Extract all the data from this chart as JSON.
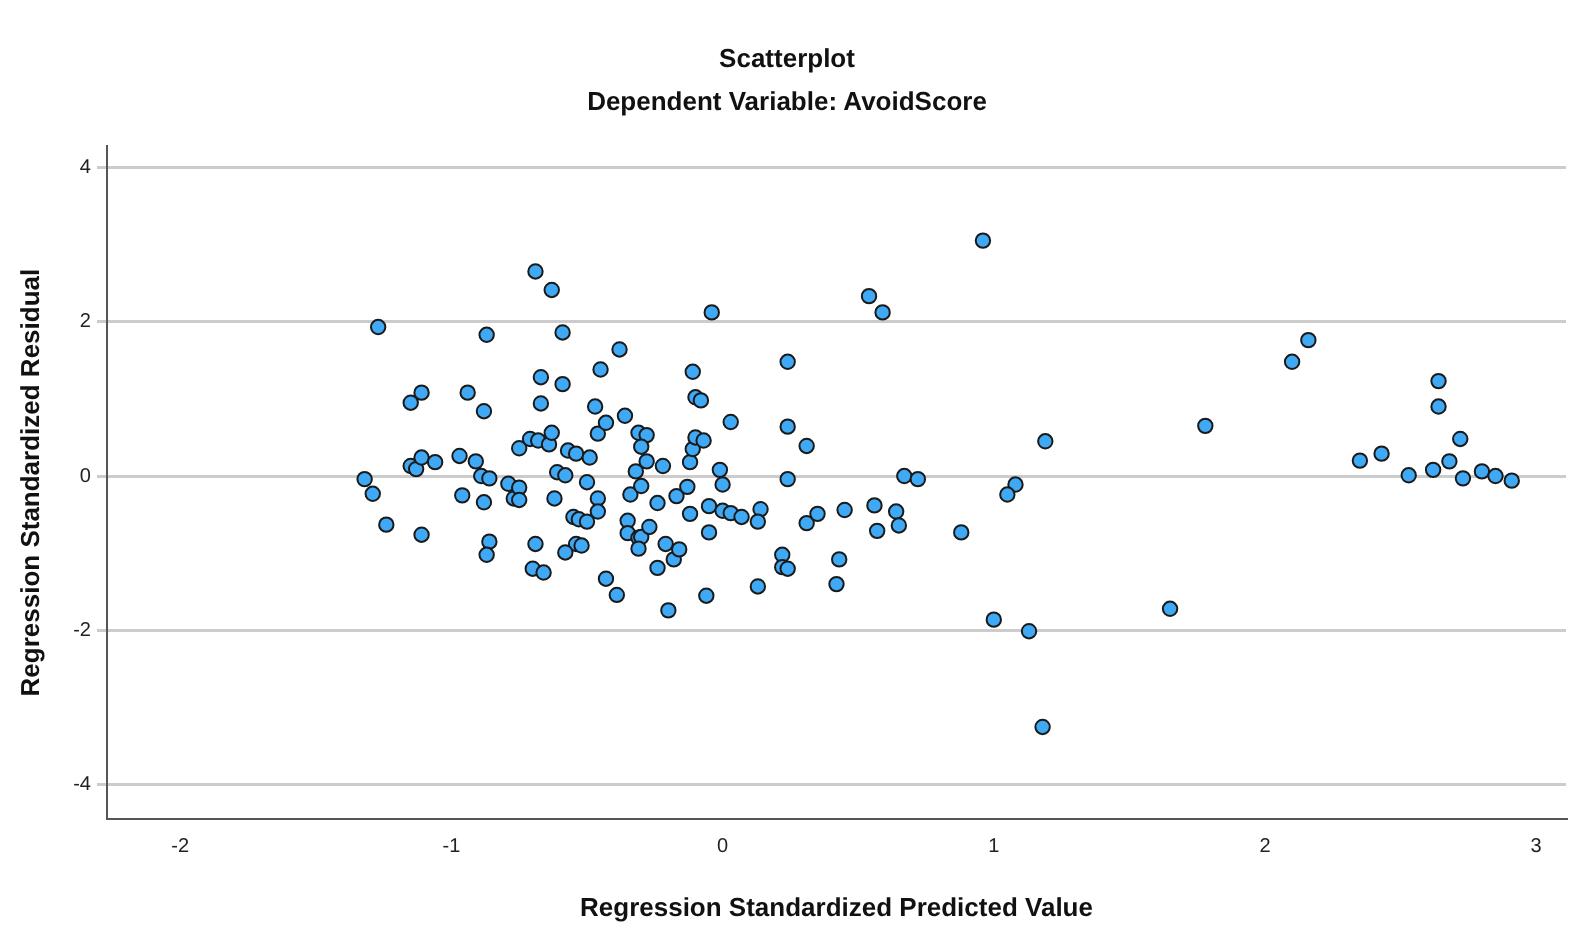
{
  "chart_data": {
    "type": "scatter",
    "title": "Scatterplot",
    "subtitle": "Dependent Variable: AvoidScore",
    "xlabel": "Regression Standardized Predicted Value",
    "ylabel": "Regression Standardized Residual",
    "xlim": [
      -2.27,
      3.11
    ],
    "ylim": [
      -4.44,
      4.27
    ],
    "xticks": [
      -2,
      -1,
      0,
      1,
      2,
      3
    ],
    "yticks": [
      -4,
      -2,
      0,
      2,
      4
    ],
    "grid": "y",
    "marker": "circle",
    "series": [
      {
        "color": "#3fa9f5",
        "x": [
          -1.32,
          -1.29,
          -1.24,
          -1.27,
          -1.15,
          -1.11,
          -1.15,
          -1.13,
          -1.11,
          -1.06,
          -1.11,
          -0.97,
          -0.94,
          -0.96,
          -0.91,
          -0.88,
          -0.87,
          -0.89,
          -0.86,
          -0.88,
          -0.86,
          -0.87,
          -0.79,
          -0.77,
          -0.75,
          -0.75,
          -0.75,
          -0.71,
          -0.68,
          -0.69,
          -0.63,
          -0.59,
          -0.67,
          -0.59,
          -0.67,
          -0.64,
          -0.63,
          -0.69,
          -0.7,
          -0.66,
          -0.61,
          -0.58,
          -0.62,
          -0.57,
          -0.54,
          -0.49,
          -0.5,
          -0.55,
          -0.53,
          -0.5,
          -0.54,
          -0.52,
          -0.58,
          -0.46,
          -0.47,
          -0.45,
          -0.43,
          -0.38,
          -0.46,
          -0.46,
          -0.43,
          -0.39,
          -0.36,
          -0.34,
          -0.35,
          -0.35,
          -0.31,
          -0.28,
          -0.3,
          -0.28,
          -0.32,
          -0.3,
          -0.31,
          -0.3,
          -0.31,
          -0.27,
          -0.24,
          -0.22,
          -0.21,
          -0.24,
          -0.18,
          -0.2,
          -0.17,
          -0.16,
          -0.13,
          -0.12,
          -0.12,
          -0.11,
          -0.1,
          -0.11,
          -0.1,
          -0.08,
          -0.07,
          -0.04,
          -0.05,
          -0.05,
          -0.06,
          -0.01,
          0.0,
          0.0,
          0.03,
          0.07,
          0.03,
          0.14,
          0.13,
          0.13,
          0.22,
          0.22,
          0.24,
          0.24,
          0.24,
          0.24,
          0.31,
          0.31,
          0.35,
          0.42,
          0.43,
          0.45,
          0.54,
          0.59,
          0.56,
          0.57,
          0.64,
          0.65,
          0.67,
          0.72,
          0.88,
          0.96,
          1.0,
          1.08,
          1.05,
          1.13,
          1.19,
          1.18,
          1.65,
          1.78,
          2.1,
          2.16,
          2.35,
          2.43,
          2.53,
          2.62,
          2.64,
          2.64,
          2.68,
          2.72,
          2.73,
          2.8,
          2.85,
          2.91
        ],
        "values": [
          -0.04,
          -0.23,
          -0.63,
          1.93,
          0.95,
          1.08,
          0.13,
          0.09,
          0.24,
          0.18,
          -0.76,
          0.26,
          1.08,
          -0.25,
          0.19,
          0.84,
          1.83,
          0.0,
          -0.03,
          -0.34,
          -0.85,
          -1.02,
          -0.1,
          -0.29,
          -0.15,
          -0.31,
          0.36,
          0.48,
          0.46,
          2.65,
          2.41,
          1.86,
          1.28,
          1.19,
          0.94,
          0.41,
          0.56,
          -0.88,
          -1.2,
          -1.25,
          0.05,
          0.01,
          -0.29,
          0.33,
          0.29,
          0.24,
          -0.08,
          -0.53,
          -0.56,
          -0.59,
          -0.88,
          -0.9,
          -0.99,
          0.55,
          0.9,
          1.38,
          0.69,
          1.64,
          -0.29,
          -0.46,
          -1.33,
          -1.54,
          0.78,
          -0.24,
          -0.58,
          -0.74,
          0.56,
          0.53,
          0.38,
          0.19,
          0.06,
          -0.13,
          -0.8,
          -0.79,
          -0.94,
          -0.66,
          -0.35,
          0.13,
          -0.88,
          -1.19,
          -1.08,
          -1.74,
          -0.26,
          -0.95,
          -0.14,
          -0.49,
          0.18,
          0.35,
          0.5,
          1.35,
          1.02,
          0.98,
          0.46,
          2.12,
          -0.39,
          -0.73,
          -1.55,
          0.08,
          -0.11,
          -0.45,
          -0.48,
          -0.53,
          0.7,
          -0.43,
          -0.59,
          -1.43,
          -1.02,
          -1.18,
          -1.2,
          -0.04,
          0.64,
          1.48,
          0.39,
          -0.61,
          -0.49,
          -1.4,
          -1.08,
          -0.44,
          2.33,
          2.12,
          -0.38,
          -0.71,
          -0.46,
          -0.64,
          0.0,
          -0.04,
          -0.73,
          3.05,
          -1.86,
          -0.11,
          -0.24,
          -2.01,
          0.45,
          -3.25,
          -1.72,
          0.65,
          1.48,
          1.76,
          0.2,
          0.29,
          0.01,
          0.08,
          1.23,
          0.9,
          0.19,
          0.48,
          -0.03,
          0.06,
          0.0,
          -0.06
        ]
      }
    ]
  }
}
